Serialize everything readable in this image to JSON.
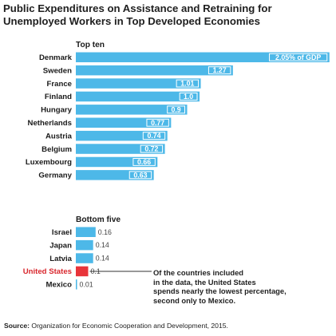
{
  "title_line1": "Public Expenditures on Assistance and Retraining for",
  "title_line2": "Unemployed Workers in Top Developed Economies",
  "source_label": "Source:",
  "source_text": "Organization for Economic Cooperation and Development, 2015.",
  "annotation_lines": [
    "Of the countries included",
    "in the data, the United States",
    "spends nearly the lowest percentage,",
    "second only to Mexico."
  ],
  "colors": {
    "bar": "#4db8e8",
    "highlight": "#e8343a",
    "label_bg": "#ffffff",
    "text": "#1a1a1a",
    "highlight_text": "#d8262c"
  },
  "chart_data": [
    {
      "type": "bar",
      "orientation": "horizontal",
      "group_title": "Top ten",
      "categories": [
        "Denmark",
        "Sweden",
        "France",
        "Finland",
        "Hungary",
        "Netherlands",
        "Austria",
        "Belgium",
        "Luxembourg",
        "Germany"
      ],
      "values": [
        2.05,
        1.27,
        1.01,
        1.0,
        0.9,
        0.77,
        0.74,
        0.72,
        0.66,
        0.63
      ],
      "value_labels": [
        "2.05% of GDP",
        "1.27",
        "1.01",
        "1.0",
        "0.9",
        "0.77",
        "0.74",
        "0.72",
        "0.66",
        "0.63"
      ],
      "unit": "% of GDP"
    },
    {
      "type": "bar",
      "orientation": "horizontal",
      "group_title": "Bottom five",
      "categories": [
        "Israel",
        "Japan",
        "Latvia",
        "United States",
        "Mexico"
      ],
      "values": [
        0.16,
        0.14,
        0.14,
        0.1,
        0.01
      ],
      "value_labels": [
        "0.16",
        "0.14",
        "0.14",
        "0.1",
        "0.01"
      ],
      "highlight": "United States",
      "unit": "% of GDP"
    }
  ]
}
